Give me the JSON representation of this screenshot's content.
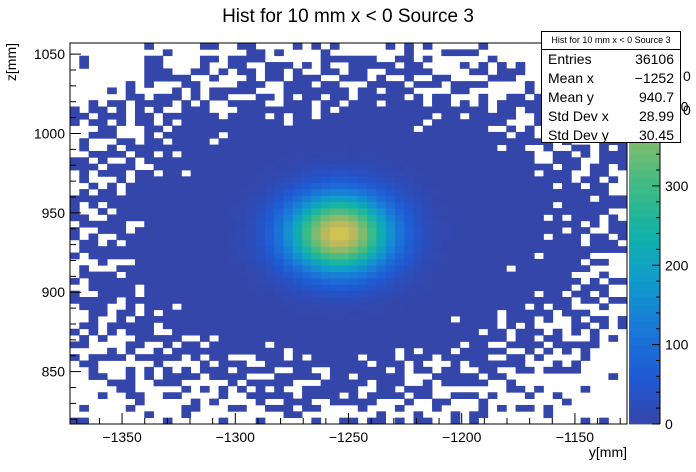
{
  "chart_data": {
    "type": "heatmap",
    "title": "Hist for 10 mm x < 0 Source 3",
    "xlabel": "y[mm]",
    "ylabel": "z[mm]",
    "xlim": [
      -1373,
      -1127
    ],
    "ylim": [
      817,
      1057
    ],
    "x_ticks": [
      -1350,
      -1300,
      -1250,
      -1200,
      -1150
    ],
    "y_ticks": [
      850,
      900,
      950,
      1000,
      1050
    ],
    "colorbar": {
      "min": 0,
      "max": 480,
      "ticks": [
        0,
        100,
        200,
        300,
        400
      ]
    },
    "peak": {
      "x": -1254,
      "y": 937,
      "value": 440
    },
    "stats": {
      "title": "Hist for 10 mm x < 0 Source 3",
      "rows": [
        {
          "label": "Entries",
          "value": "36106"
        },
        {
          "label": "Mean x",
          "value": "−1252"
        },
        {
          "label": "Mean y",
          "value": "940.7"
        },
        {
          "label": "Std Dev x",
          "value": "28.99"
        },
        {
          "label": "Std Dev y",
          "value": "30.45"
        }
      ]
    },
    "partial_colorbar_labels": [
      "0",
      "0"
    ]
  }
}
